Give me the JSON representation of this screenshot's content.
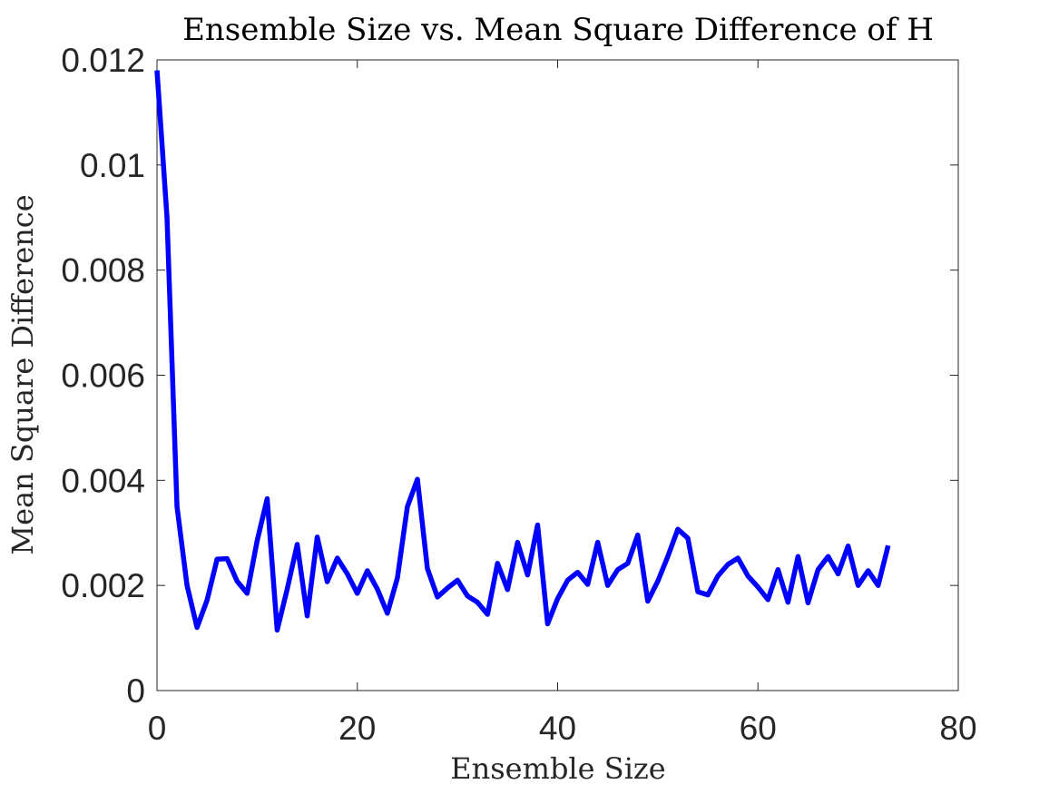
{
  "chart_data": {
    "type": "line",
    "title": "Ensemble Size vs. Mean Square Difference of H",
    "xlabel": "Ensemble Size",
    "ylabel": "Mean Square Difference",
    "xlim": [
      0,
      80
    ],
    "ylim": [
      0,
      0.012
    ],
    "xticks": [
      0,
      20,
      40,
      60,
      80
    ],
    "xtick_labels": [
      "0",
      "20",
      "40",
      "60",
      "80"
    ],
    "yticks": [
      0,
      0.002,
      0.004,
      0.006,
      0.008,
      0.01,
      0.012
    ],
    "ytick_labels": [
      "0",
      "0.002",
      "0.004",
      "0.006",
      "0.008",
      "0.01",
      "0.012"
    ],
    "grid": false,
    "legend": "none",
    "series": [
      {
        "color": "#0000ff",
        "x": [
          0,
          1,
          2,
          3,
          4,
          5,
          6,
          7,
          8,
          9,
          10,
          11,
          12,
          13,
          14,
          15,
          16,
          17,
          18,
          19,
          20,
          21,
          22,
          23,
          24,
          25,
          26,
          27,
          28,
          29,
          30,
          31,
          32,
          33,
          34,
          35,
          36,
          37,
          38,
          39,
          40,
          41,
          42,
          43,
          44,
          45,
          46,
          47,
          48,
          49,
          50,
          51,
          52,
          53,
          54,
          55,
          56,
          57,
          58,
          59,
          60,
          61,
          62,
          63,
          64,
          65,
          66,
          67,
          68,
          69,
          70,
          71,
          72,
          73
        ],
        "y": [
          0.0118,
          0.009,
          0.0035,
          0.002,
          0.0012,
          0.00172,
          0.0025,
          0.00251,
          0.00208,
          0.00185,
          0.00285,
          0.00365,
          0.00115,
          0.00193,
          0.00278,
          0.00142,
          0.00292,
          0.00207,
          0.00252,
          0.00222,
          0.00185,
          0.00228,
          0.00193,
          0.00147,
          0.00214,
          0.0035,
          0.00402,
          0.00232,
          0.00178,
          0.00195,
          0.0021,
          0.0018,
          0.00168,
          0.00145,
          0.00242,
          0.00192,
          0.00282,
          0.0022,
          0.00315,
          0.00127,
          0.00175,
          0.0021,
          0.00225,
          0.00202,
          0.00282,
          0.002,
          0.0023,
          0.00242,
          0.00296,
          0.0017,
          0.00208,
          0.00255,
          0.00307,
          0.0029,
          0.00188,
          0.00182,
          0.00218,
          0.0024,
          0.00252,
          0.00218,
          0.00197,
          0.00173,
          0.0023,
          0.00168,
          0.00255,
          0.00167,
          0.0023,
          0.00255,
          0.00222,
          0.00275,
          0.002,
          0.00228,
          0.002,
          0.00276
        ]
      }
    ]
  }
}
